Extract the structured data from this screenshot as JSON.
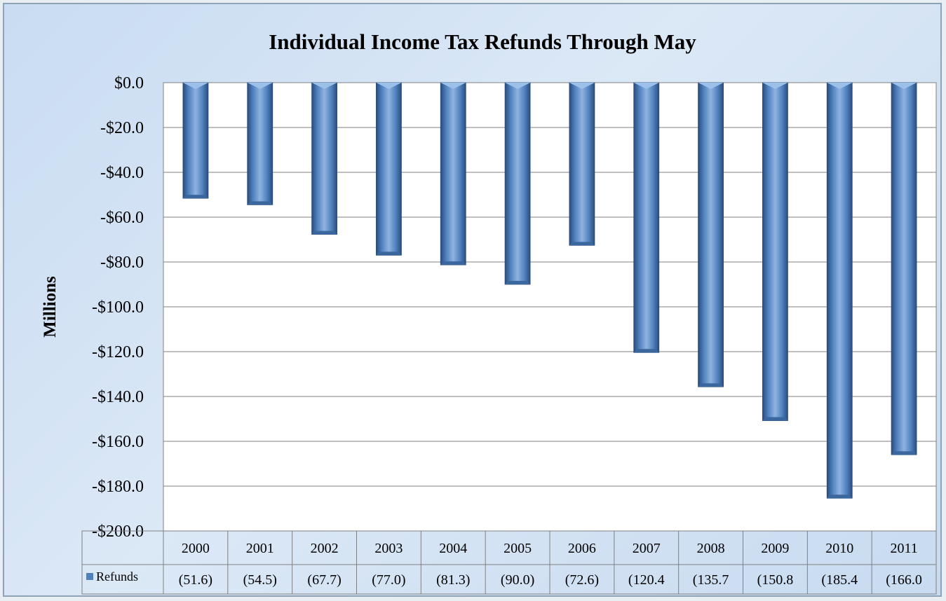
{
  "chart_data": {
    "type": "bar",
    "title": "Individual Income Tax Refunds Through May",
    "ylabel": "Millions",
    "xlabel": "",
    "ylim": [
      -200,
      0
    ],
    "yticks": [
      "$0.0",
      "-$20.0",
      "-$40.0",
      "-$60.0",
      "-$80.0",
      "-$100.0",
      "-$120.0",
      "-$140.0",
      "-$160.0",
      "-$180.0",
      "-$200.0"
    ],
    "categories": [
      "2000",
      "2001",
      "2002",
      "2003",
      "2004",
      "2005",
      "2006",
      "2007",
      "2008",
      "2009",
      "2010",
      "2011"
    ],
    "series": [
      {
        "name": "Refunds",
        "values": [
          -51.6,
          -54.5,
          -67.7,
          -77.0,
          -81.3,
          -90.0,
          -72.6,
          -120.4,
          -135.7,
          -150.8,
          -185.4,
          -166.0
        ],
        "table_labels": [
          "(51.6)",
          "(54.5)",
          "(67.7)",
          "(77.0)",
          "(81.3)",
          "(90.0)",
          "(72.6)",
          "(120.4",
          "(135.7",
          "(150.8",
          "(185.4",
          "(166.0"
        ]
      }
    ],
    "grid": true,
    "legend": "data-table",
    "colors": {
      "bar": "#4f81bd",
      "bar_dark": "#2a4c7c",
      "bar_light": "#8fb3e0",
      "plot_bg": "#ffffff",
      "frame_bg": "#c9dcf2"
    }
  }
}
